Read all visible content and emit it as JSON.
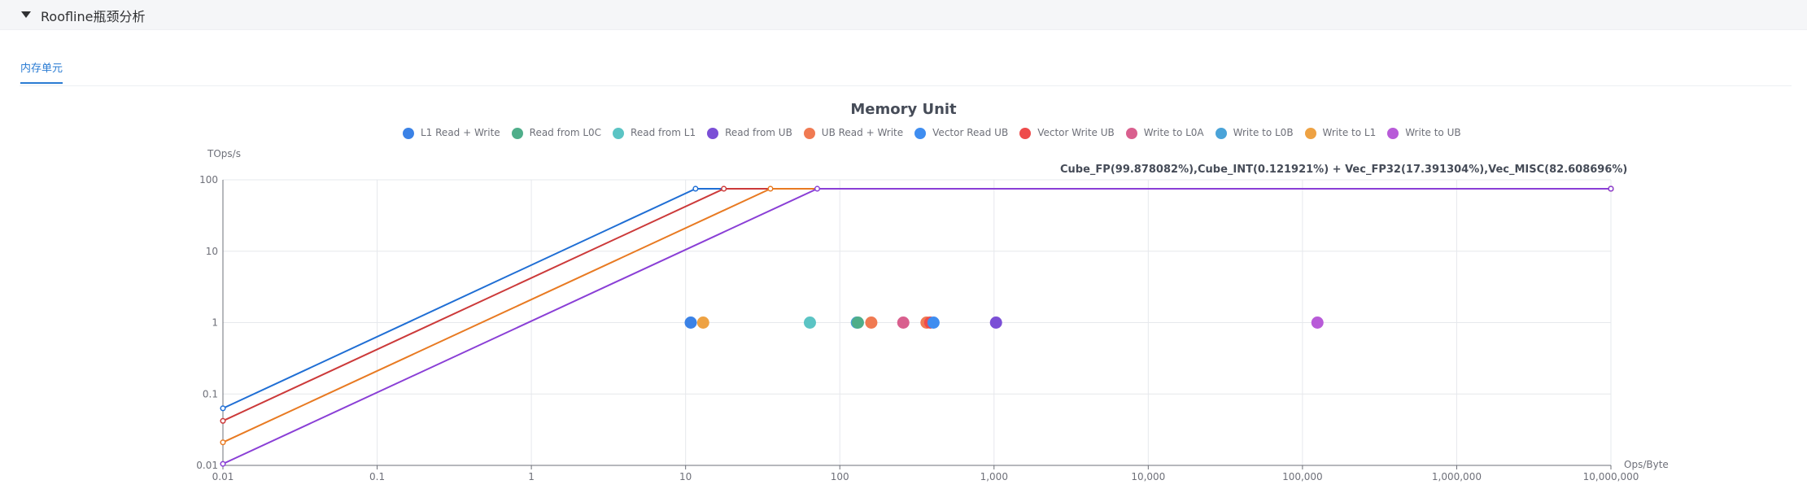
{
  "section": {
    "title": "Roofline瓶颈分析"
  },
  "tabs": [
    {
      "label": "内存单元"
    }
  ],
  "chart_data": {
    "type": "scatter",
    "title": "Memory Unit",
    "xlabel": "Ops/Byte",
    "ylabel": "TOps/s",
    "xscale": "log",
    "yscale": "log",
    "xlim": [
      0.01,
      10000000
    ],
    "ylim": [
      0.01,
      100
    ],
    "x_ticks": [
      "0.01",
      "0.1",
      "1",
      "10",
      "100",
      "1,000",
      "10,000",
      "100,000",
      "1,000,000",
      "10,000,000"
    ],
    "y_ticks": [
      "0.01",
      "0.1",
      "1",
      "10",
      "100"
    ],
    "grid": true,
    "legend_position": "top",
    "annotation": "Cube_FP(99.878082%),Cube_INT(0.121921%) + Vec_FP32(17.391304%),Vec_MISC(82.608696%)",
    "legend": [
      {
        "name": "L1 Read + Write",
        "color": "#3b82e6"
      },
      {
        "name": "Read from L0C",
        "color": "#4fae8a"
      },
      {
        "name": "Read from L1",
        "color": "#5bc4c4"
      },
      {
        "name": "Read from UB",
        "color": "#7b4fd6"
      },
      {
        "name": "UB Read + Write",
        "color": "#f07a52"
      },
      {
        "name": "Vector Read UB",
        "color": "#3f8df0"
      },
      {
        "name": "Vector Write UB",
        "color": "#ee4b4b"
      },
      {
        "name": "Write to L0A",
        "color": "#d95f8e"
      },
      {
        "name": "Write to L0B",
        "color": "#4aa3d8"
      },
      {
        "name": "Write to L1",
        "color": "#eea243"
      },
      {
        "name": "Write to UB",
        "color": "#b85bd8"
      }
    ],
    "rooflines": [
      {
        "color": "#1f6ed4",
        "points": [
          [
            0.01,
            0.063
          ],
          [
            11.6,
            75
          ],
          [
            10000000,
            75
          ]
        ]
      },
      {
        "color": "#cc3a3a",
        "points": [
          [
            0.01,
            0.042
          ],
          [
            17.7,
            75
          ],
          [
            10000000,
            75
          ]
        ]
      },
      {
        "color": "#e87a22",
        "points": [
          [
            0.01,
            0.021
          ],
          [
            35.5,
            75
          ],
          [
            10000000,
            75
          ]
        ]
      },
      {
        "color": "#8a3fd6",
        "points": [
          [
            0.01,
            0.0105
          ],
          [
            71.4,
            75
          ],
          [
            10000000,
            75
          ]
        ]
      }
    ],
    "points": [
      {
        "x": 10.8,
        "y": 1,
        "color": "#3b82e6"
      },
      {
        "x": 13.0,
        "y": 1,
        "color": "#eea243"
      },
      {
        "x": 64.0,
        "y": 1,
        "color": "#5bc4c4"
      },
      {
        "x": 129,
        "y": 1,
        "color": "#4aa3d8"
      },
      {
        "x": 131,
        "y": 1,
        "color": "#4fae8a"
      },
      {
        "x": 160,
        "y": 1,
        "color": "#f07a52"
      },
      {
        "x": 258,
        "y": 1,
        "color": "#d95f8e"
      },
      {
        "x": 365,
        "y": 1,
        "color": "#f07a52"
      },
      {
        "x": 386,
        "y": 1,
        "color": "#ee4b4b"
      },
      {
        "x": 405,
        "y": 1,
        "color": "#3f8df0"
      },
      {
        "x": 1030,
        "y": 1,
        "color": "#7b4fd6"
      },
      {
        "x": 125000,
        "y": 1,
        "color": "#b85bd8"
      }
    ]
  }
}
